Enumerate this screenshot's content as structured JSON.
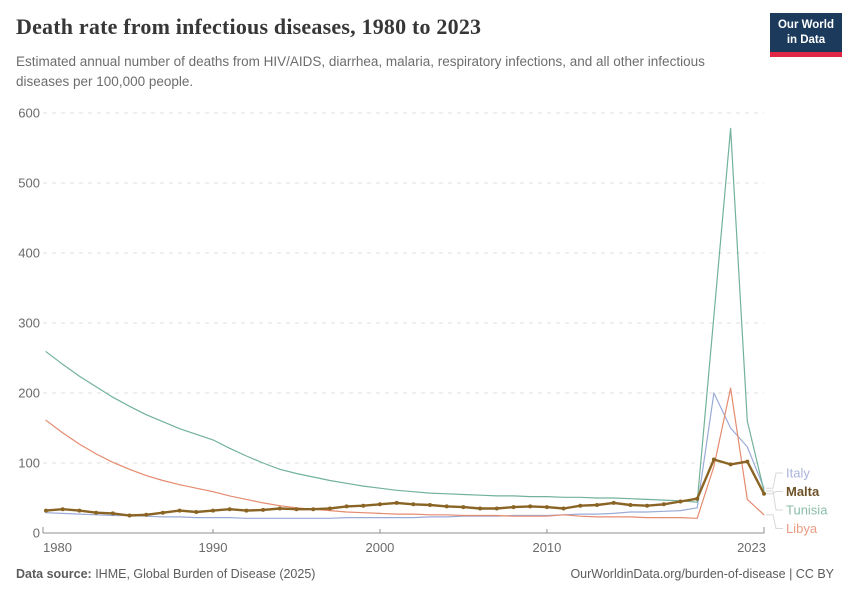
{
  "header": {
    "title": "Death rate from infectious diseases, 1980 to 2023",
    "subtitle": "Estimated annual number of deaths from HIV/AIDS, diarrhea, malaria, respiratory infections, and all other infectious diseases per 100,000 people.",
    "logo": {
      "line1": "Our World",
      "line2": "in Data",
      "bg_color": "#1b3a5c",
      "accent_color": "#e02745"
    }
  },
  "footer": {
    "datasource_label": "Data source:",
    "datasource_value": " IHME, Global Burden of Disease (2025)",
    "attribution": "OurWorldinData.org/burden-of-disease | CC BY"
  },
  "chart_data": {
    "type": "line",
    "title": "Death rate from infectious diseases, 1980 to 2023",
    "ylabel": "",
    "xlabel": "",
    "ylim": [
      0,
      600
    ],
    "xlim": [
      1980,
      2023
    ],
    "grid": "dashed-horizontal",
    "legend_position": "right-of-plot",
    "yticks": [
      0,
      100,
      200,
      300,
      400,
      500,
      600
    ],
    "xticks": [
      1980,
      1990,
      2000,
      2010,
      2023
    ],
    "x": [
      1980,
      1981,
      1982,
      1983,
      1984,
      1985,
      1986,
      1987,
      1988,
      1989,
      1990,
      1991,
      1992,
      1993,
      1994,
      1995,
      1996,
      1997,
      1998,
      1999,
      2000,
      2001,
      2002,
      2003,
      2004,
      2005,
      2006,
      2007,
      2008,
      2009,
      2010,
      2011,
      2012,
      2013,
      2014,
      2015,
      2016,
      2017,
      2018,
      2019,
      2020,
      2021,
      2022,
      2023
    ],
    "legend_order": [
      "Italy",
      "Malta",
      "Tunisia",
      "Libya"
    ],
    "series": [
      {
        "name": "Italy",
        "color": "#9babd8",
        "label_color": "#a9b3da",
        "focused": false,
        "values": [
          29,
          28,
          27,
          26,
          25,
          25,
          24,
          23,
          23,
          22,
          22,
          22,
          21,
          21,
          21,
          21,
          21,
          21,
          22,
          22,
          22,
          22,
          22,
          23,
          23,
          24,
          24,
          24,
          25,
          25,
          25,
          26,
          27,
          27,
          28,
          30,
          30,
          31,
          32,
          36,
          200,
          150,
          123,
          64
        ]
      },
      {
        "name": "Malta",
        "color": "#8a6424",
        "label_color": "#6d5227",
        "focused": true,
        "values": [
          32,
          34,
          32,
          29,
          28,
          25,
          26,
          29,
          32,
          30,
          32,
          34,
          32,
          33,
          35,
          34,
          34,
          35,
          38,
          39,
          41,
          43,
          41,
          40,
          38,
          37,
          35,
          35,
          37,
          38,
          37,
          35,
          39,
          40,
          43,
          40,
          39,
          41,
          45,
          49,
          105,
          98,
          102,
          56
        ]
      },
      {
        "name": "Tunisia",
        "color": "#72b29a",
        "label_color": "#8abda7",
        "focused": false,
        "values": [
          259,
          241,
          224,
          209,
          194,
          181,
          169,
          159,
          149,
          141,
          133,
          121,
          110,
          100,
          91,
          85,
          80,
          75,
          71,
          67,
          64,
          61,
          59,
          57,
          56,
          55,
          54,
          53,
          53,
          52,
          52,
          51,
          51,
          50,
          50,
          49,
          48,
          47,
          46,
          44,
          310,
          578,
          160,
          60
        ]
      },
      {
        "name": "Libya",
        "color": "#e58b6f",
        "label_color": "#ea9d84",
        "focused": false,
        "values": [
          161,
          143,
          127,
          113,
          101,
          91,
          82,
          75,
          69,
          64,
          59,
          53,
          48,
          43,
          39,
          36,
          34,
          32,
          30,
          29,
          28,
          27,
          27,
          26,
          26,
          25,
          25,
          25,
          24,
          24,
          24,
          26,
          24,
          23,
          23,
          23,
          22,
          22,
          22,
          21,
          95,
          207,
          48,
          26
        ]
      }
    ]
  }
}
